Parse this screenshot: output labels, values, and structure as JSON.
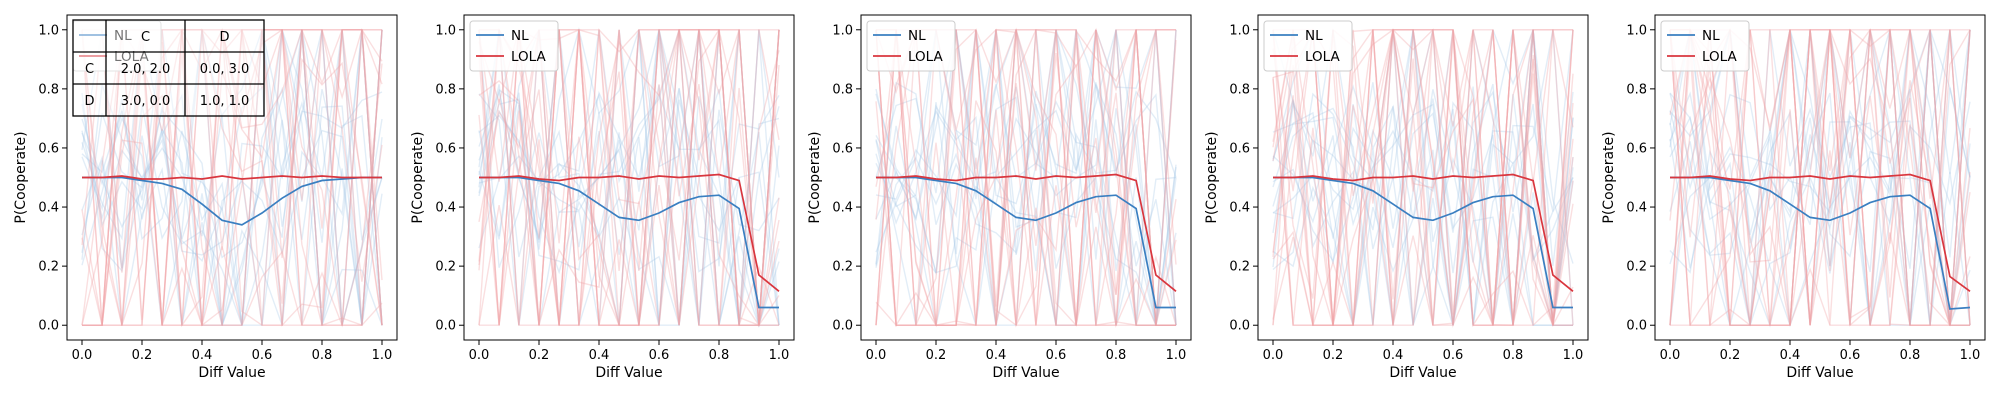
{
  "colors": {
    "nl": "#3a7fc1",
    "lola": "#d9363e",
    "nl_faint": "#9ec2e4",
    "lola_faint": "#f2a2a6"
  },
  "chart_data": [
    {
      "type": "line",
      "xlabel": "Diff Value",
      "ylabel": "P(Cooperate)",
      "xlim": [
        -0.05,
        1.05
      ],
      "ylim": [
        -0.05,
        1.05
      ],
      "xticks": [
        "0.0",
        "0.2",
        "0.4",
        "0.6",
        "0.8",
        "1.0"
      ],
      "yticks": [
        "0.0",
        "0.2",
        "0.4",
        "0.6",
        "0.8",
        "1.0"
      ],
      "legend_position": "top-left",
      "x": [
        0.0,
        0.067,
        0.133,
        0.2,
        0.267,
        0.333,
        0.4,
        0.467,
        0.533,
        0.6,
        0.667,
        0.733,
        0.8,
        0.867,
        0.933,
        1.0
      ],
      "series": [
        {
          "name": "NL",
          "color": "nl",
          "values": [
            0.5,
            0.5,
            0.5,
            0.49,
            0.48,
            0.46,
            0.41,
            0.355,
            0.34,
            0.38,
            0.43,
            0.47,
            0.49,
            0.495,
            0.5,
            0.5
          ]
        },
        {
          "name": "LOLA",
          "color": "lola",
          "values": [
            0.5,
            0.5,
            0.505,
            0.495,
            0.495,
            0.5,
            0.495,
            0.505,
            0.495,
            0.5,
            0.505,
            0.5,
            0.505,
            0.5,
            0.5,
            0.5
          ]
        }
      ],
      "payoff_table": {
        "header": [
          "",
          "C",
          "D"
        ],
        "rows": [
          [
            "C",
            "2.0, 2.0",
            "0.0, 3.0"
          ],
          [
            "D",
            "3.0, 0.0",
            "1.0, 1.0"
          ]
        ]
      }
    },
    {
      "type": "line",
      "xlabel": "Diff Value",
      "ylabel": "P(Cooperate)",
      "xlim": [
        -0.05,
        1.05
      ],
      "ylim": [
        -0.05,
        1.05
      ],
      "xticks": [
        "0.0",
        "0.2",
        "0.4",
        "0.6",
        "0.8",
        "1.0"
      ],
      "yticks": [
        "0.0",
        "0.2",
        "0.4",
        "0.6",
        "0.8",
        "1.0"
      ],
      "legend_position": "top-left",
      "x": [
        0.0,
        0.067,
        0.133,
        0.2,
        0.267,
        0.333,
        0.4,
        0.467,
        0.533,
        0.6,
        0.667,
        0.733,
        0.8,
        0.867,
        0.933,
        1.0
      ],
      "series": [
        {
          "name": "NL",
          "color": "nl",
          "values": [
            0.5,
            0.5,
            0.5,
            0.49,
            0.48,
            0.455,
            0.41,
            0.365,
            0.355,
            0.38,
            0.415,
            0.435,
            0.44,
            0.395,
            0.06,
            0.06
          ]
        },
        {
          "name": "LOLA",
          "color": "lola",
          "values": [
            0.5,
            0.5,
            0.505,
            0.495,
            0.49,
            0.5,
            0.5,
            0.505,
            0.495,
            0.505,
            0.5,
            0.505,
            0.51,
            0.49,
            0.17,
            0.115
          ]
        }
      ]
    },
    {
      "type": "line",
      "xlabel": "Diff Value",
      "ylabel": "P(Cooperate)",
      "xlim": [
        -0.05,
        1.05
      ],
      "ylim": [
        -0.05,
        1.05
      ],
      "xticks": [
        "0.0",
        "0.2",
        "0.4",
        "0.6",
        "0.8",
        "1.0"
      ],
      "yticks": [
        "0.0",
        "0.2",
        "0.4",
        "0.6",
        "0.8",
        "1.0"
      ],
      "legend_position": "top-left",
      "x": [
        0.0,
        0.067,
        0.133,
        0.2,
        0.267,
        0.333,
        0.4,
        0.467,
        0.533,
        0.6,
        0.667,
        0.733,
        0.8,
        0.867,
        0.933,
        1.0
      ],
      "series": [
        {
          "name": "NL",
          "color": "nl",
          "values": [
            0.5,
            0.5,
            0.5,
            0.49,
            0.48,
            0.455,
            0.41,
            0.365,
            0.355,
            0.38,
            0.415,
            0.435,
            0.44,
            0.395,
            0.06,
            0.06
          ]
        },
        {
          "name": "LOLA",
          "color": "lola",
          "values": [
            0.5,
            0.5,
            0.505,
            0.495,
            0.49,
            0.5,
            0.5,
            0.505,
            0.495,
            0.505,
            0.5,
            0.505,
            0.51,
            0.49,
            0.17,
            0.115
          ]
        }
      ]
    },
    {
      "type": "line",
      "xlabel": "Diff Value",
      "ylabel": "P(Cooperate)",
      "xlim": [
        -0.05,
        1.05
      ],
      "ylim": [
        -0.05,
        1.05
      ],
      "xticks": [
        "0.0",
        "0.2",
        "0.4",
        "0.6",
        "0.8",
        "1.0"
      ],
      "yticks": [
        "0.0",
        "0.2",
        "0.4",
        "0.6",
        "0.8",
        "1.0"
      ],
      "legend_position": "top-left",
      "x": [
        0.0,
        0.067,
        0.133,
        0.2,
        0.267,
        0.333,
        0.4,
        0.467,
        0.533,
        0.6,
        0.667,
        0.733,
        0.8,
        0.867,
        0.933,
        1.0
      ],
      "series": [
        {
          "name": "NL",
          "color": "nl",
          "values": [
            0.5,
            0.5,
            0.5,
            0.49,
            0.48,
            0.455,
            0.41,
            0.365,
            0.355,
            0.38,
            0.415,
            0.435,
            0.44,
            0.395,
            0.06,
            0.06
          ]
        },
        {
          "name": "LOLA",
          "color": "lola",
          "values": [
            0.5,
            0.5,
            0.505,
            0.495,
            0.49,
            0.5,
            0.5,
            0.505,
            0.495,
            0.505,
            0.5,
            0.505,
            0.51,
            0.49,
            0.17,
            0.115
          ]
        }
      ]
    },
    {
      "type": "line",
      "xlabel": "Diff Value",
      "ylabel": "P(Cooperate)",
      "xlim": [
        -0.05,
        1.05
      ],
      "ylim": [
        -0.05,
        1.05
      ],
      "xticks": [
        "0.0",
        "0.2",
        "0.4",
        "0.6",
        "0.8",
        "1.0"
      ],
      "yticks": [
        "0.0",
        "0.2",
        "0.4",
        "0.6",
        "0.8",
        "1.0"
      ],
      "legend_position": "top-left",
      "x": [
        0.0,
        0.067,
        0.133,
        0.2,
        0.267,
        0.333,
        0.4,
        0.467,
        0.533,
        0.6,
        0.667,
        0.733,
        0.8,
        0.867,
        0.933,
        1.0
      ],
      "series": [
        {
          "name": "NL",
          "color": "nl",
          "values": [
            0.5,
            0.5,
            0.5,
            0.49,
            0.48,
            0.455,
            0.41,
            0.365,
            0.355,
            0.38,
            0.415,
            0.435,
            0.44,
            0.395,
            0.055,
            0.06
          ]
        },
        {
          "name": "LOLA",
          "color": "lola",
          "values": [
            0.5,
            0.5,
            0.505,
            0.495,
            0.49,
            0.5,
            0.5,
            0.505,
            0.495,
            0.505,
            0.5,
            0.505,
            0.51,
            0.49,
            0.165,
            0.115
          ]
        }
      ]
    }
  ]
}
